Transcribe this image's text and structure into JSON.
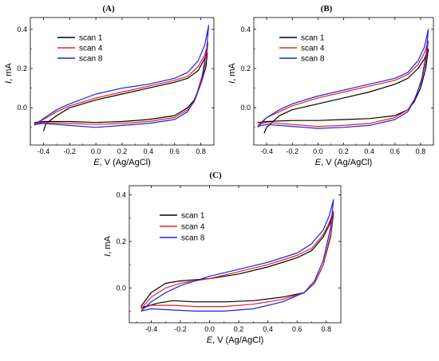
{
  "figure": {
    "panels": [
      "(A)",
      "(B)",
      "(C)"
    ]
  },
  "chart_data": [
    {
      "panel": "(A)",
      "type": "line",
      "xlabel_italic": "E",
      "xlabel_rest": ", V (Ag/AgCl)",
      "ylabel_italic": "I",
      "ylabel_rest": ", mA",
      "xlim": [
        -0.5,
        0.9
      ],
      "ylim": [
        -0.19,
        0.46
      ],
      "xticks": [
        -0.4,
        -0.2,
        0.0,
        0.2,
        0.4,
        0.6,
        0.8
      ],
      "xtick_labels": [
        "-0.4",
        "-0.2",
        "0.0",
        "0.2",
        "0.4",
        "0.6",
        "0.8"
      ],
      "yticks": [
        0.0,
        0.2,
        0.4
      ],
      "ytick_labels": [
        "0.0",
        "0.2",
        "0.4"
      ],
      "legend": "top-left",
      "grid": false,
      "series": [
        {
          "name": "scan 1",
          "color": "#000000",
          "points": [
            [
              -0.4,
              -0.12
            ],
            [
              -0.38,
              -0.08
            ],
            [
              -0.3,
              -0.04
            ],
            [
              -0.2,
              0.0
            ],
            [
              0.0,
              0.04
            ],
            [
              0.2,
              0.07
            ],
            [
              0.4,
              0.1
            ],
            [
              0.6,
              0.13
            ],
            [
              0.7,
              0.15
            ],
            [
              0.78,
              0.19
            ],
            [
              0.82,
              0.24
            ],
            [
              0.85,
              0.28
            ],
            [
              0.84,
              0.21
            ],
            [
              0.8,
              0.12
            ],
            [
              0.75,
              0.04
            ],
            [
              0.7,
              0.0
            ],
            [
              0.6,
              -0.04
            ],
            [
              0.4,
              -0.06
            ],
            [
              0.2,
              -0.07
            ],
            [
              0.0,
              -0.075
            ],
            [
              -0.2,
              -0.07
            ],
            [
              -0.4,
              -0.07
            ],
            [
              -0.47,
              -0.075
            ]
          ]
        },
        {
          "name": "scan 4",
          "color": "#e8231d",
          "points": [
            [
              -0.47,
              -0.08
            ],
            [
              -0.4,
              -0.06
            ],
            [
              -0.3,
              -0.02
            ],
            [
              -0.2,
              0.01
            ],
            [
              0.0,
              0.05
            ],
            [
              0.2,
              0.08
            ],
            [
              0.4,
              0.11
            ],
            [
              0.6,
              0.14
            ],
            [
              0.7,
              0.16
            ],
            [
              0.78,
              0.21
            ],
            [
              0.83,
              0.27
            ],
            [
              0.855,
              0.33
            ],
            [
              0.84,
              0.24
            ],
            [
              0.8,
              0.12
            ],
            [
              0.75,
              0.03
            ],
            [
              0.7,
              -0.01
            ],
            [
              0.6,
              -0.05
            ],
            [
              0.4,
              -0.07
            ],
            [
              0.2,
              -0.08
            ],
            [
              0.0,
              -0.085
            ],
            [
              -0.2,
              -0.08
            ],
            [
              -0.4,
              -0.075
            ],
            [
              -0.47,
              -0.08
            ]
          ]
        },
        {
          "name": "scan 8",
          "color": "#1b1ff0",
          "points": [
            [
              -0.47,
              -0.09
            ],
            [
              -0.4,
              -0.055
            ],
            [
              -0.3,
              -0.01
            ],
            [
              -0.2,
              0.02
            ],
            [
              0.0,
              0.07
            ],
            [
              0.2,
              0.1
            ],
            [
              0.4,
              0.12
            ],
            [
              0.6,
              0.15
            ],
            [
              0.7,
              0.18
            ],
            [
              0.78,
              0.24
            ],
            [
              0.83,
              0.32
            ],
            [
              0.86,
              0.42
            ],
            [
              0.845,
              0.3
            ],
            [
              0.81,
              0.16
            ],
            [
              0.76,
              0.05
            ],
            [
              0.7,
              -0.02
            ],
            [
              0.6,
              -0.06
            ],
            [
              0.4,
              -0.08
            ],
            [
              0.2,
              -0.09
            ],
            [
              0.0,
              -0.1
            ],
            [
              -0.2,
              -0.09
            ],
            [
              -0.4,
              -0.08
            ],
            [
              -0.47,
              -0.085
            ]
          ]
        }
      ]
    },
    {
      "panel": "(B)",
      "type": "line",
      "xlabel_italic": "E",
      "xlabel_rest": ", V (Ag/AgCl)",
      "ylabel_italic": "I",
      "ylabel_rest": ", mA",
      "xlim": [
        -0.5,
        0.9
      ],
      "ylim": [
        -0.19,
        0.46
      ],
      "xticks": [
        -0.4,
        -0.2,
        0.0,
        0.2,
        0.4,
        0.6,
        0.8
      ],
      "xtick_labels": [
        "-0.4",
        "-0.2",
        "0.0",
        "0.2",
        "0.4",
        "0.6",
        "0.8"
      ],
      "yticks": [
        0.0,
        0.2,
        0.4
      ],
      "ytick_labels": [
        "0.0",
        "0.2",
        "0.4"
      ],
      "legend": "top-left",
      "grid": false,
      "series": [
        {
          "name": "scan 1",
          "color": "#000000",
          "points": [
            [
              -0.42,
              -0.13
            ],
            [
              -0.4,
              -0.1
            ],
            [
              -0.3,
              -0.04
            ],
            [
              -0.2,
              -0.01
            ],
            [
              0.0,
              0.02
            ],
            [
              0.2,
              0.05
            ],
            [
              0.4,
              0.08
            ],
            [
              0.6,
              0.12
            ],
            [
              0.7,
              0.15
            ],
            [
              0.78,
              0.2
            ],
            [
              0.83,
              0.25
            ],
            [
              0.86,
              0.3
            ],
            [
              0.84,
              0.2
            ],
            [
              0.8,
              0.1
            ],
            [
              0.75,
              0.03
            ],
            [
              0.7,
              -0.01
            ],
            [
              0.6,
              -0.04
            ],
            [
              0.4,
              -0.055
            ],
            [
              0.2,
              -0.06
            ],
            [
              0.0,
              -0.065
            ],
            [
              -0.2,
              -0.065
            ],
            [
              -0.4,
              -0.07
            ],
            [
              -0.47,
              -0.075
            ]
          ]
        },
        {
          "name": "scan 4",
          "color": "#e8231d",
          "points": [
            [
              -0.47,
              -0.09
            ],
            [
              -0.4,
              -0.05
            ],
            [
              -0.3,
              -0.02
            ],
            [
              -0.2,
              0.01
            ],
            [
              0.0,
              0.05
            ],
            [
              0.2,
              0.08
            ],
            [
              0.4,
              0.11
            ],
            [
              0.6,
              0.14
            ],
            [
              0.7,
              0.17
            ],
            [
              0.78,
              0.22
            ],
            [
              0.83,
              0.28
            ],
            [
              0.86,
              0.34
            ],
            [
              0.84,
              0.23
            ],
            [
              0.8,
              0.12
            ],
            [
              0.75,
              0.04
            ],
            [
              0.7,
              -0.01
            ],
            [
              0.6,
              -0.05
            ],
            [
              0.4,
              -0.08
            ],
            [
              0.2,
              -0.09
            ],
            [
              0.0,
              -0.095
            ],
            [
              -0.2,
              -0.085
            ],
            [
              -0.4,
              -0.075
            ],
            [
              -0.47,
              -0.085
            ]
          ]
        },
        {
          "name": "scan 8",
          "color": "#1b1ff0",
          "points": [
            [
              -0.47,
              -0.1
            ],
            [
              -0.4,
              -0.05
            ],
            [
              -0.3,
              -0.01
            ],
            [
              -0.2,
              0.02
            ],
            [
              0.0,
              0.06
            ],
            [
              0.2,
              0.09
            ],
            [
              0.4,
              0.12
            ],
            [
              0.6,
              0.15
            ],
            [
              0.7,
              0.18
            ],
            [
              0.78,
              0.24
            ],
            [
              0.83,
              0.31
            ],
            [
              0.86,
              0.4
            ],
            [
              0.845,
              0.28
            ],
            [
              0.81,
              0.15
            ],
            [
              0.76,
              0.05
            ],
            [
              0.7,
              -0.02
            ],
            [
              0.6,
              -0.06
            ],
            [
              0.4,
              -0.09
            ],
            [
              0.2,
              -0.1
            ],
            [
              0.0,
              -0.105
            ],
            [
              -0.2,
              -0.095
            ],
            [
              -0.4,
              -0.085
            ],
            [
              -0.47,
              -0.095
            ]
          ]
        }
      ]
    },
    {
      "panel": "(C)",
      "type": "line",
      "xlabel_italic": "E",
      "xlabel_rest": ", V (Ag/AgCl)",
      "ylabel_italic": "I",
      "ylabel_rest": ", mA",
      "xlim": [
        -0.55,
        0.9
      ],
      "ylim": [
        -0.15,
        0.44
      ],
      "xticks": [
        -0.4,
        -0.2,
        0.0,
        0.2,
        0.4,
        0.6,
        0.8
      ],
      "xtick_labels": [
        "-0.4",
        "-0.2",
        "0.0",
        "0.2",
        "0.4",
        "0.6",
        "0.8"
      ],
      "yticks": [
        0.0,
        0.2,
        0.4
      ],
      "ytick_labels": [
        "0.0",
        "0.2",
        "0.4"
      ],
      "legend": "top-left",
      "grid": false,
      "series": [
        {
          "name": "scan 1",
          "color": "#000000",
          "points": [
            [
              -0.47,
              -0.08
            ],
            [
              -0.4,
              -0.02
            ],
            [
              -0.3,
              0.02
            ],
            [
              -0.2,
              0.03
            ],
            [
              0.0,
              0.04
            ],
            [
              0.2,
              0.06
            ],
            [
              0.4,
              0.09
            ],
            [
              0.6,
              0.13
            ],
            [
              0.7,
              0.16
            ],
            [
              0.78,
              0.22
            ],
            [
              0.82,
              0.27
            ],
            [
              0.85,
              0.32
            ],
            [
              0.83,
              0.22
            ],
            [
              0.78,
              0.1
            ],
            [
              0.72,
              0.02
            ],
            [
              0.65,
              -0.02
            ],
            [
              0.5,
              -0.04
            ],
            [
              0.3,
              -0.055
            ],
            [
              0.1,
              -0.06
            ],
            [
              -0.1,
              -0.06
            ],
            [
              -0.25,
              -0.055
            ],
            [
              -0.35,
              -0.065
            ],
            [
              -0.47,
              -0.085
            ]
          ]
        },
        {
          "name": "scan 4",
          "color": "#e8231d",
          "points": [
            [
              -0.47,
              -0.09
            ],
            [
              -0.4,
              -0.04
            ],
            [
              -0.3,
              0.0
            ],
            [
              -0.2,
              0.02
            ],
            [
              0.0,
              0.04
            ],
            [
              0.2,
              0.07
            ],
            [
              0.4,
              0.1
            ],
            [
              0.6,
              0.14
            ],
            [
              0.7,
              0.17
            ],
            [
              0.78,
              0.23
            ],
            [
              0.82,
              0.28
            ],
            [
              0.85,
              0.33
            ],
            [
              0.83,
              0.23
            ],
            [
              0.78,
              0.1
            ],
            [
              0.72,
              0.02
            ],
            [
              0.65,
              -0.02
            ],
            [
              0.5,
              -0.05
            ],
            [
              0.3,
              -0.07
            ],
            [
              0.1,
              -0.08
            ],
            [
              -0.1,
              -0.08
            ],
            [
              -0.25,
              -0.075
            ],
            [
              -0.4,
              -0.075
            ],
            [
              -0.47,
              -0.09
            ]
          ]
        },
        {
          "name": "scan 8",
          "color": "#1b1ff0",
          "points": [
            [
              -0.47,
              -0.1
            ],
            [
              -0.4,
              -0.06
            ],
            [
              -0.3,
              -0.02
            ],
            [
              -0.2,
              0.01
            ],
            [
              0.0,
              0.05
            ],
            [
              0.2,
              0.08
            ],
            [
              0.4,
              0.11
            ],
            [
              0.6,
              0.15
            ],
            [
              0.7,
              0.19
            ],
            [
              0.78,
              0.25
            ],
            [
              0.82,
              0.31
            ],
            [
              0.85,
              0.38
            ],
            [
              0.83,
              0.26
            ],
            [
              0.78,
              0.12
            ],
            [
              0.72,
              0.03
            ],
            [
              0.65,
              -0.02
            ],
            [
              0.5,
              -0.06
            ],
            [
              0.3,
              -0.09
            ],
            [
              0.1,
              -0.1
            ],
            [
              -0.1,
              -0.1
            ],
            [
              -0.25,
              -0.095
            ],
            [
              -0.4,
              -0.09
            ],
            [
              -0.47,
              -0.1
            ]
          ]
        }
      ]
    }
  ]
}
